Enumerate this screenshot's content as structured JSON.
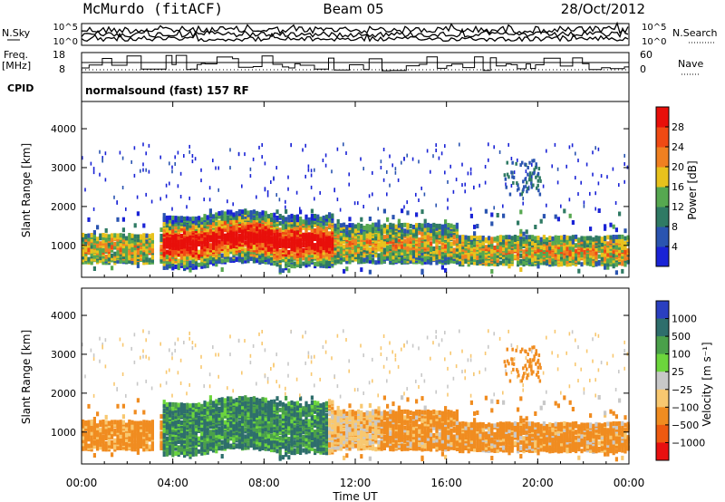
{
  "header": {
    "station": "McMurdo (fitACF)",
    "beam": "Beam 05",
    "date": "28/Oct/2012"
  },
  "noise_panel": {
    "left_label": "N.Sky",
    "right_label": "N.Search",
    "left_ticks": [
      "10^5",
      "10^0"
    ],
    "right_ticks": [
      "10^5",
      "10^0"
    ]
  },
  "freq_panel": {
    "left_label_line1": "Freq.",
    "left_label_line2": "[MHz]",
    "left_ticks": [
      "18",
      "8"
    ],
    "right_ticks": [
      "60",
      "0"
    ],
    "right_label": "Nave"
  },
  "cpid_panel": {
    "label": "CPID",
    "mode_text": "normalsound (fast) 157 RF"
  },
  "chart_data": [
    {
      "type": "heatmap",
      "name": "power",
      "ylabel": "Slant Range [km]",
      "yticks": [
        1000,
        2000,
        3000,
        4000
      ],
      "ylim": [
        180,
        4700
      ],
      "xlim_hours": [
        0,
        24
      ],
      "colorbar": {
        "label": "Power [dB]",
        "ticks": [
          4,
          8,
          12,
          16,
          20,
          24,
          28
        ],
        "range": [
          0,
          32
        ],
        "colors": [
          "#1a23d6",
          "#2a54b0",
          "#2f7a64",
          "#56a850",
          "#e8c21c",
          "#f08020",
          "#f04a14",
          "#e80f0a"
        ]
      }
    },
    {
      "type": "heatmap",
      "name": "velocity",
      "ylabel": "Slant Range [km]",
      "yticks": [
        1000,
        2000,
        3000,
        4000
      ],
      "ylim": [
        180,
        4700
      ],
      "xlabel": "Time UT",
      "xticks": [
        "00:00",
        "04:00",
        "08:00",
        "12:00",
        "16:00",
        "20:00",
        "00:00"
      ],
      "colorbar": {
        "label": "Velocity [m s⁻¹]",
        "ticks": [
          "1000",
          "500",
          "100",
          "25",
          "−25",
          "−100",
          "−500",
          "−1000"
        ],
        "colors": [
          "#2a3fc0",
          "#2e6e6c",
          "#4aa04a",
          "#6cd63c",
          "#c8c8c8",
          "#f8c870",
          "#f08c20",
          "#ee5a10",
          "#e81010"
        ]
      }
    }
  ]
}
